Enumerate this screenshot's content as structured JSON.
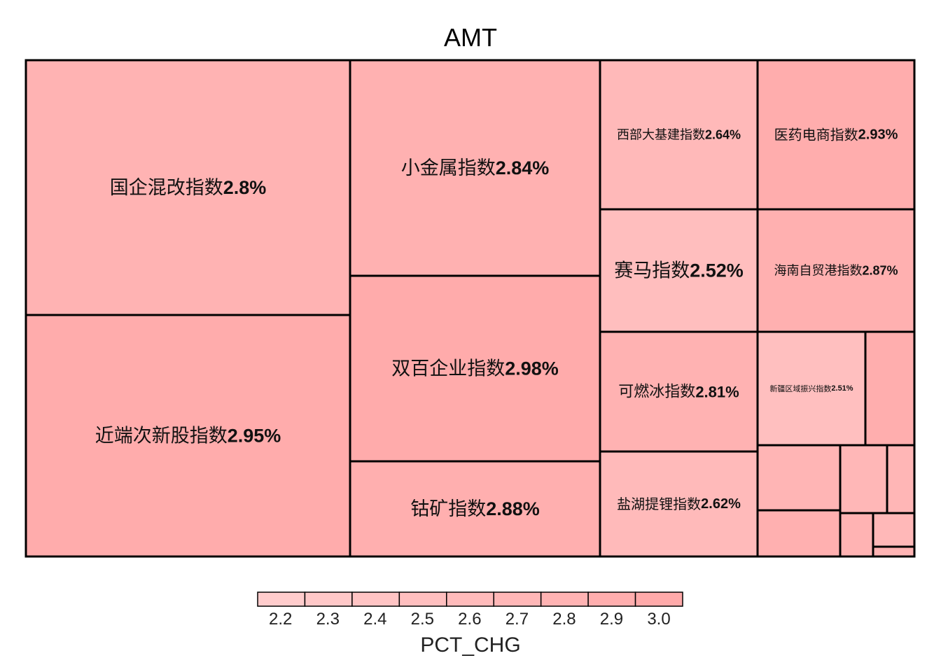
{
  "chart_data": {
    "type": "treemap",
    "title": "AMT",
    "legend_title": "PCT_CHG",
    "legend_ticks": [
      "2.2",
      "2.3",
      "2.4",
      "2.5",
      "2.6",
      "2.7",
      "2.8",
      "2.9",
      "3.0"
    ],
    "legend_placement": "bottom",
    "color_low": "#ffcccc",
    "color_high": "#ffaaaa",
    "series": [
      {
        "label": "国企混改指数2.8%",
        "name": "国企混改指数",
        "pct": 2.8
      },
      {
        "label": "近端次新股指数2.95%",
        "name": "近端次新股指数",
        "pct": 2.95
      },
      {
        "label": "小金属指数2.84%",
        "name": "小金属指数",
        "pct": 2.84
      },
      {
        "label": "双百企业指数2.98%",
        "name": "双百企业指数",
        "pct": 2.98
      },
      {
        "label": "钴矿指数2.88%",
        "name": "钴矿指数",
        "pct": 2.88
      },
      {
        "label": "西部大基建指数2.64%",
        "name": "西部大基建指数",
        "pct": 2.64
      },
      {
        "label": "医药电商指数2.93%",
        "name": "医药电商指数",
        "pct": 2.93
      },
      {
        "label": "赛马指数2.52%",
        "name": "赛马指数",
        "pct": 2.52
      },
      {
        "label": "海南自贸港指数2.87%",
        "name": "海南自贸港指数",
        "pct": 2.87
      },
      {
        "label": "可燃冰指数2.81%",
        "name": "可燃冰指数",
        "pct": 2.81
      },
      {
        "label": "新疆区域振兴指数2.51%",
        "name": "新疆区域振兴指数",
        "pct": 2.51
      },
      {
        "label": "盐湖提锂指数2.62%",
        "name": "盐湖提锂指数",
        "pct": 2.62
      },
      {
        "label": "",
        "name": "",
        "pct": 2.9
      },
      {
        "label": "",
        "name": "",
        "pct": 2.75
      },
      {
        "label": "",
        "name": "",
        "pct": 2.7
      },
      {
        "label": "",
        "name": "",
        "pct": 2.72
      },
      {
        "label": "",
        "name": "",
        "pct": 2.85
      },
      {
        "label": "",
        "name": "",
        "pct": 2.78
      },
      {
        "label": "",
        "name": "",
        "pct": 2.68
      },
      {
        "label": "",
        "name": "",
        "pct": 2.76
      },
      {
        "label": "",
        "name": "",
        "pct": 2.8
      }
    ]
  }
}
